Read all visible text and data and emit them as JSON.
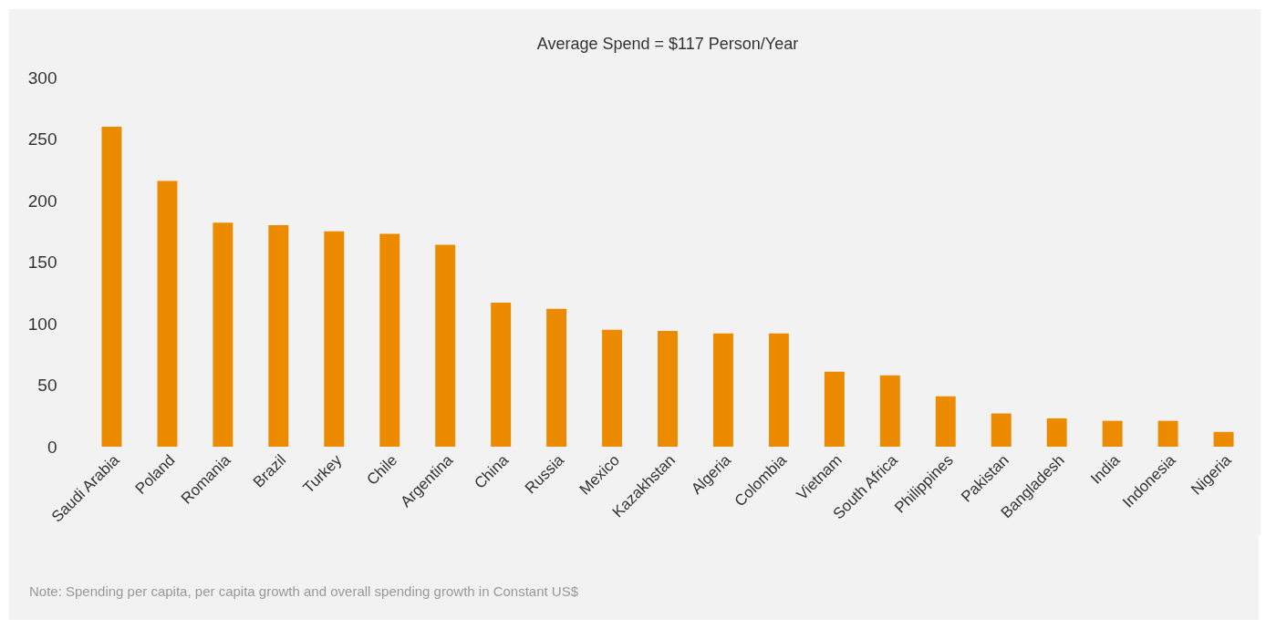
{
  "chart_data": {
    "type": "bar",
    "title": "Average Spend = $117 Person/Year",
    "categories": [
      "Saudi Arabia",
      "Poland",
      "Romania",
      "Brazil",
      "Turkey",
      "Chile",
      "Argentina",
      "China",
      "Russia",
      "Mexico",
      "Kazakhstan",
      "Algeria",
      "Colombia",
      "Vietnam",
      "South Africa",
      "Philippines",
      "Pakistan",
      "Bangladesh",
      "India",
      "Indonesia",
      "Nigeria"
    ],
    "values": [
      260,
      216,
      182,
      180,
      175,
      173,
      164,
      117,
      112,
      95,
      94,
      92,
      92,
      61,
      58,
      41,
      27,
      23,
      21,
      21,
      12
    ],
    "color": "#ec8b00",
    "ylim": [
      0,
      300
    ],
    "yticks": [
      0,
      50,
      100,
      150,
      200,
      250,
      300
    ],
    "grid": false,
    "annotations": [
      "Note: Spending per capita, per capita growth and overall spending growth in Constant US$"
    ]
  }
}
